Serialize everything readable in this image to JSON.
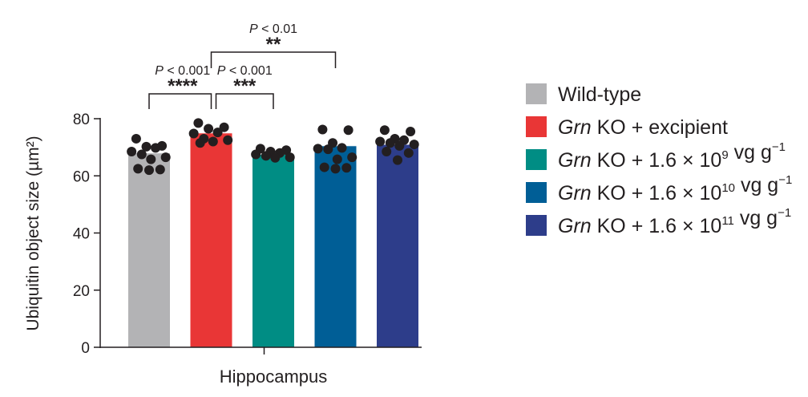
{
  "chart_data": {
    "type": "bar",
    "ylabel": "Ubiquitin object size (µm²)",
    "xlabel": "Hippocampus",
    "ylim": [
      0,
      80
    ],
    "yticks": [
      0,
      20,
      40,
      60,
      80
    ],
    "series": [
      {
        "name_parts": [
          {
            "t": "Wild-type",
            "i": false
          }
        ],
        "color": "#b3b3b5",
        "value": 68.0,
        "points": [
          73,
          70.5,
          70.2,
          69.8,
          68.5,
          67.5,
          66.5,
          65.8,
          62.5,
          62.2,
          62.0
        ]
      },
      {
        "name_parts": [
          {
            "t": "Grn",
            "i": true
          },
          {
            "t": " KO + excipient",
            "i": false
          }
        ],
        "color": "#e93636",
        "value": 75.0,
        "points": [
          78.5,
          77,
          76.5,
          75.2,
          74.8,
          73,
          72.5,
          72.0,
          71.5
        ]
      },
      {
        "name_parts": [
          {
            "t": "Grn",
            "i": true
          },
          {
            "t": " KO + 1.6 × 10",
            "i": false
          },
          {
            "t": "9",
            "sup": true
          },
          {
            "t": " vg g",
            "i": false
          },
          {
            "t": "−1",
            "sup": true
          }
        ],
        "color": "#008d84",
        "value": 67.5,
        "points": [
          69.5,
          69.0,
          68.5,
          68.0,
          67.5,
          67.0,
          66.5,
          66.3
        ]
      },
      {
        "name_parts": [
          {
            "t": "Grn",
            "i": true
          },
          {
            "t": " KO + 1.6 × 10",
            "i": false
          },
          {
            "t": "10",
            "sup": true
          },
          {
            "t": " vg g",
            "i": false
          },
          {
            "t": "−1",
            "sup": true
          }
        ],
        "color": "#005e96",
        "value": 70.5,
        "points": [
          76.2,
          76.0,
          71.5,
          69.8,
          69.5,
          69.3,
          66.5,
          65.8,
          63.0,
          62.8,
          62.5
        ]
      },
      {
        "name_parts": [
          {
            "t": "Grn",
            "i": true
          },
          {
            "t": " KO + 1.6 × 10",
            "i": false
          },
          {
            "t": "11",
            "sup": true
          },
          {
            "t": " vg g",
            "i": false
          },
          {
            "t": "−1",
            "sup": true
          }
        ],
        "color": "#2d3d8a",
        "value": 71.0,
        "points": [
          76,
          75.5,
          73,
          72.5,
          72.0,
          71.5,
          71.0,
          70.5,
          68.5,
          68.0,
          65.5
        ]
      }
    ],
    "comparisons": [
      {
        "from": 0,
        "to": 1,
        "p": "P < 0.001",
        "stars": "****",
        "level": 1
      },
      {
        "from": 1,
        "to": 2,
        "p": "P < 0.001",
        "stars": "***",
        "level": 1
      },
      {
        "from": 1,
        "to": 3,
        "p": "P < 0.01",
        "stars": "**",
        "level": 2
      }
    ],
    "legend_position": "right"
  }
}
